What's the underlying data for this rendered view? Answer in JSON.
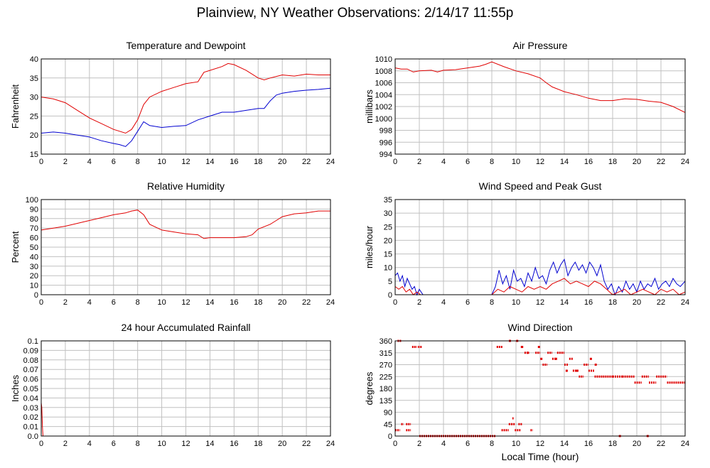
{
  "page_title": "Plainview, NY Weather Observations: 2/14/17 11:55p",
  "x_axis_title": "Local Time (hour)",
  "colors": {
    "primary_series": "#e00000",
    "secondary_series": "#0000d0",
    "grid": "#c0c0c0"
  },
  "chart_data": [
    {
      "id": "temp",
      "type": "line",
      "title": "Temperature and Dewpoint",
      "xlabel": "",
      "ylabel": "Fahrenheit",
      "xlim": [
        0,
        24
      ],
      "ylim": [
        15,
        40
      ],
      "xticks": [
        0,
        2,
        4,
        6,
        8,
        10,
        12,
        14,
        16,
        18,
        20,
        22,
        24
      ],
      "yticks": [
        15,
        20,
        25,
        30,
        35,
        40
      ],
      "grid": true,
      "series": [
        {
          "color": "#e00000",
          "x": [
            0,
            1,
            2,
            3,
            4,
            5,
            6,
            7,
            7.5,
            8,
            8.5,
            9,
            10,
            11,
            12,
            13,
            13.5,
            14,
            15,
            15.5,
            16,
            17,
            18,
            18.5,
            19,
            20,
            21,
            22,
            23,
            24
          ],
          "y": [
            30,
            29.5,
            28.5,
            26.5,
            24.5,
            23,
            21.5,
            20.5,
            21.5,
            24,
            28,
            30,
            31.5,
            32.5,
            33.5,
            34,
            36.5,
            37,
            38,
            38.8,
            38.5,
            37,
            35,
            34.5,
            35,
            35.8,
            35.5,
            36,
            35.8,
            35.8
          ]
        },
        {
          "color": "#0000d0",
          "x": [
            0,
            1,
            2,
            3,
            4,
            5,
            6,
            6.5,
            7,
            7.5,
            8,
            8.5,
            9,
            10,
            11,
            12,
            13,
            14,
            15,
            16,
            17,
            18,
            18.5,
            19,
            19.5,
            20,
            21,
            22,
            23,
            24
          ],
          "y": [
            20.5,
            20.8,
            20.5,
            20,
            19.5,
            18.5,
            17.8,
            17.5,
            17,
            18.5,
            21,
            23.5,
            22.5,
            22,
            22.3,
            22.5,
            24,
            25,
            26,
            26,
            26.5,
            27,
            27,
            29,
            30.5,
            31,
            31.5,
            31.8,
            32,
            32.3
          ]
        }
      ]
    },
    {
      "id": "pressure",
      "type": "line",
      "title": "Air Pressure",
      "xlabel": "",
      "ylabel": "millibars",
      "xlim": [
        0,
        24
      ],
      "ylim": [
        994,
        1010
      ],
      "xticks": [
        0,
        2,
        4,
        6,
        8,
        10,
        12,
        14,
        16,
        18,
        20,
        22,
        24
      ],
      "yticks": [
        994,
        996,
        998,
        1000,
        1002,
        1004,
        1006,
        1008,
        1010
      ],
      "grid": true,
      "series": [
        {
          "color": "#e00000",
          "x": [
            0,
            0.5,
            1,
            1.5,
            2,
            3,
            3.5,
            4,
            5,
            6,
            7,
            7.5,
            8,
            9,
            10,
            11,
            12,
            12.5,
            13,
            14,
            15,
            16,
            17,
            18,
            19,
            20,
            21,
            22,
            23,
            24
          ],
          "y": [
            1008.5,
            1008.3,
            1008.3,
            1007.8,
            1008,
            1008.1,
            1007.8,
            1008.1,
            1008.2,
            1008.5,
            1008.8,
            1009.1,
            1009.5,
            1008.7,
            1008,
            1007.5,
            1006.8,
            1006,
            1005.3,
            1004.5,
            1004,
            1003.4,
            1003,
            1003,
            1003.3,
            1003.2,
            1002.9,
            1002.7,
            1002,
            1001
          ]
        }
      ]
    },
    {
      "id": "humidity",
      "type": "line",
      "title": "Relative Humidity",
      "xlabel": "",
      "ylabel": "Percent",
      "xlim": [
        0,
        24
      ],
      "ylim": [
        0,
        100
      ],
      "xticks": [
        0,
        2,
        4,
        6,
        8,
        10,
        12,
        14,
        16,
        18,
        20,
        22,
        24
      ],
      "yticks": [
        0,
        10,
        20,
        30,
        40,
        50,
        60,
        70,
        80,
        90,
        100
      ],
      "grid": true,
      "series": [
        {
          "color": "#e00000",
          "x": [
            0,
            1,
            2,
            3,
            4,
            5,
            6,
            7,
            7.5,
            8,
            8.5,
            9,
            10,
            11,
            12,
            13,
            13.5,
            14,
            15,
            16,
            17,
            17.5,
            18,
            19,
            19.5,
            20,
            21,
            22,
            23,
            24
          ],
          "y": [
            68,
            70,
            72,
            75,
            78,
            81,
            84,
            86,
            88,
            89,
            84,
            74,
            68,
            66,
            64,
            63,
            59,
            60,
            60,
            60,
            61,
            63,
            69,
            74,
            78,
            82,
            85,
            86,
            88,
            88
          ]
        }
      ]
    },
    {
      "id": "wind",
      "type": "line",
      "title": "Wind Speed and Peak Gust",
      "xlabel": "",
      "ylabel": "miles/hour",
      "xlim": [
        0,
        24
      ],
      "ylim": [
        0,
        35
      ],
      "xticks": [
        0,
        2,
        4,
        6,
        8,
        10,
        12,
        14,
        16,
        18,
        20,
        22,
        24
      ],
      "yticks": [
        0,
        5,
        10,
        15,
        20,
        25,
        30,
        35
      ],
      "grid": true,
      "series": [
        {
          "color": "#0000d0",
          "x": [
            0,
            0.2,
            0.4,
            0.6,
            0.8,
            1,
            1.2,
            1.4,
            1.6,
            1.8,
            2,
            2.3,
            8,
            8.3,
            8.6,
            8.9,
            9.2,
            9.5,
            9.8,
            10.1,
            10.4,
            10.7,
            11,
            11.3,
            11.6,
            11.9,
            12.2,
            12.5,
            12.8,
            13.1,
            13.4,
            13.7,
            14,
            14.3,
            14.6,
            14.9,
            15.2,
            15.5,
            15.8,
            16.1,
            16.4,
            16.7,
            17,
            17.3,
            17.6,
            17.9,
            18.2,
            18.5,
            18.8,
            19.1,
            19.4,
            19.7,
            20,
            20.3,
            20.6,
            20.9,
            21.2,
            21.5,
            21.8,
            22.1,
            22.4,
            22.7,
            23,
            23.3,
            23.6,
            24
          ],
          "y": [
            7,
            8,
            5,
            7,
            3,
            6,
            4,
            2,
            3,
            0,
            2,
            0,
            0,
            3,
            9,
            4,
            7,
            2,
            9,
            5,
            6,
            3,
            8,
            5,
            10,
            6,
            7,
            4,
            9,
            12,
            8,
            11,
            13,
            7,
            10,
            12,
            9,
            11,
            8,
            12,
            10,
            7,
            11,
            5,
            2,
            4,
            0,
            3,
            1,
            5,
            2,
            4,
            1,
            5,
            2,
            4,
            3,
            6,
            2,
            4,
            5,
            3,
            6,
            4,
            3,
            5
          ]
        },
        {
          "color": "#e00000",
          "x": [
            0,
            0.3,
            0.6,
            0.9,
            1.2,
            1.5,
            1.8,
            2.1,
            8,
            8.5,
            9,
            9.5,
            10,
            10.5,
            11,
            11.5,
            12,
            12.5,
            13,
            13.5,
            14,
            14.5,
            15,
            15.5,
            16,
            16.5,
            17,
            17.5,
            18,
            18.5,
            19,
            19.5,
            20,
            20.5,
            21,
            21.5,
            22,
            22.5,
            23,
            23.5,
            24
          ],
          "y": [
            3,
            2,
            3,
            1,
            2,
            0,
            1,
            0,
            0,
            2,
            1,
            3,
            2,
            1,
            3,
            2,
            3,
            2,
            4,
            5,
            6,
            4,
            5,
            4,
            3,
            5,
            4,
            2,
            0,
            1,
            2,
            0,
            1,
            2,
            1,
            0,
            2,
            1,
            2,
            0,
            1
          ]
        }
      ]
    },
    {
      "id": "rain",
      "type": "line",
      "title": "24 hour Accumulated Rainfall",
      "xlabel": "",
      "ylabel": "Inches",
      "xlim": [
        0,
        24
      ],
      "ylim": [
        0,
        0.1
      ],
      "xticks": [
        0,
        2,
        4,
        6,
        8,
        10,
        12,
        14,
        16,
        18,
        20,
        22,
        24
      ],
      "yticks": [
        0,
        0.01,
        0.02,
        0.03,
        0.04,
        0.05,
        0.06,
        0.07,
        0.08,
        0.09,
        0.1
      ],
      "ytick_labels": [
        "0.0",
        "0.01",
        "0.02",
        "0.03",
        "0.04",
        "0.05",
        "0.06",
        "0.07",
        "0.08",
        "0.09",
        "0.1"
      ],
      "grid": true,
      "series": [
        {
          "color": "#e00000",
          "x": [
            0,
            0.05,
            0.1,
            0.15,
            24
          ],
          "y": [
            0.035,
            0.03,
            0.01,
            0,
            0
          ]
        }
      ]
    },
    {
      "id": "direction",
      "type": "scatter",
      "title": "Wind Direction",
      "xlabel": "Local Time (hour)",
      "ylabel": "degrees",
      "xlim": [
        0,
        24
      ],
      "ylim": [
        0,
        360
      ],
      "xticks": [
        0,
        2,
        4,
        6,
        8,
        10,
        12,
        14,
        16,
        18,
        20,
        22,
        24
      ],
      "yticks": [
        0,
        45,
        90,
        135,
        180,
        225,
        270,
        315,
        360
      ],
      "grid": true,
      "series": [
        {
          "color": "#e00000",
          "segments": [
            [
              0,
              0.4,
              22
            ],
            [
              0.2,
              0.5,
              360
            ],
            [
              0.5,
              0.7,
              45
            ],
            [
              0.9,
              1.3,
              45
            ],
            [
              0.9,
              1.3,
              22
            ],
            [
              1.4,
              1.8,
              337
            ],
            [
              1.9,
              2.2,
              337
            ],
            [
              2.0,
              8.3,
              0
            ],
            [
              8.4,
              8.9,
              337
            ],
            [
              8.8,
              9.4,
              22
            ],
            [
              9.4,
              9.6,
              45
            ],
            [
              9.6,
              9.9,
              45
            ],
            [
              9.7,
              9.8,
              67
            ],
            [
              9.9,
              10.4,
              22
            ],
            [
              10.2,
              10.5,
              45
            ],
            [
              10.4,
              10.6,
              337
            ],
            [
              10.7,
              11,
              315
            ],
            [
              11.2,
              11.4,
              22
            ],
            [
              11.6,
              12,
              315
            ],
            [
              12.2,
              12.6,
              270
            ],
            [
              12.6,
              13,
              315
            ],
            [
              13,
              13.4,
              292
            ],
            [
              13.4,
              14,
              315
            ],
            [
              14,
              14.3,
              270
            ],
            [
              14.4,
              14.7,
              292
            ],
            [
              14.7,
              15.2,
              247
            ],
            [
              15.2,
              15.6,
              225
            ],
            [
              15.6,
              16,
              270
            ],
            [
              16,
              16.5,
              247
            ],
            [
              16.5,
              17.2,
              225
            ],
            [
              17.2,
              18,
              225
            ],
            [
              18,
              18.8,
              225
            ],
            [
              18.8,
              19.8,
              225
            ],
            [
              19.8,
              20.4,
              202
            ],
            [
              20.4,
              21,
              225
            ],
            [
              21,
              21.6,
              202
            ],
            [
              21.6,
              22.5,
              225
            ],
            [
              22.5,
              24,
              202
            ]
          ],
          "points": [
            [
              9.5,
              360
            ],
            [
              10.1,
              360
            ],
            [
              10.5,
              337
            ],
            [
              11,
              315
            ],
            [
              12.1,
              292
            ],
            [
              13.3,
              292
            ],
            [
              14.2,
              247
            ],
            [
              15,
              247
            ],
            [
              16.2,
              292
            ],
            [
              16.6,
              270
            ],
            [
              18.6,
              0
            ],
            [
              20.9,
              0
            ],
            [
              11.9,
              337
            ]
          ]
        }
      ]
    }
  ]
}
